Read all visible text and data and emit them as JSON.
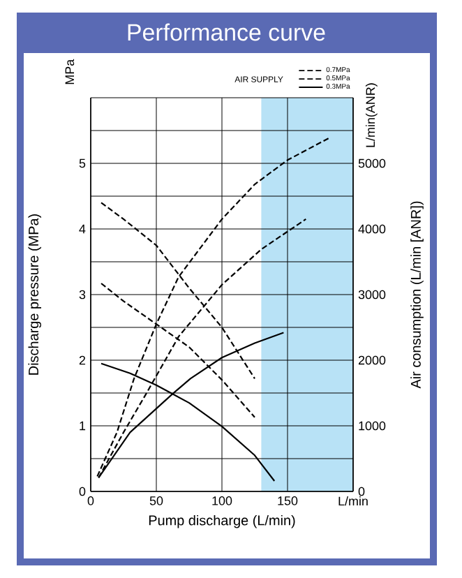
{
  "chart_data": {
    "type": "line",
    "title": "Performance curve",
    "xlabel": "Pump discharge (L/min)",
    "ylabel": "Discharge pressure (MPa)",
    "y2label": "Air consumption (L/min [ANR])",
    "legend_title": "AIR SUPPLY",
    "legend": "top right",
    "grid": true,
    "marker": "none",
    "annotations": [
      "MPa",
      "L/min(ANR)"
    ],
    "xlim": [
      0,
      200
    ],
    "xticks": [
      0,
      50,
      100,
      150,
      {
        "value": 200,
        "label": "L/min"
      }
    ],
    "ylim": [
      0,
      6
    ],
    "yticks": [
      0,
      {
        "value": 0.5,
        "label": null
      },
      1,
      {
        "value": 1.5,
        "label": null
      },
      2,
      {
        "value": 2.5,
        "label": null
      },
      3,
      {
        "value": 3.5,
        "label": null
      },
      4,
      {
        "value": 4.5,
        "label": null
      },
      5,
      {
        "value": 5.5,
        "label": null
      },
      {
        "value": 6,
        "label": null
      }
    ],
    "y2lim": [
      0,
      6000
    ],
    "y2ticks": [
      0,
      1000,
      2000,
      3000,
      4000,
      5000
    ],
    "bands": [
      {
        "axis": "x",
        "from": 130,
        "to": 200,
        "color": "#b8e2f6"
      }
    ],
    "series": [
      {
        "name": "0.7MPa",
        "color": "#000000",
        "line_style": "dashed",
        "x": [
          8,
          25,
          50,
          75,
          100,
          125
        ],
        "values": [
          4.4,
          4.15,
          3.75,
          3.1,
          2.5,
          1.72
        ]
      },
      {
        "name": "0.5MPa",
        "color": "#000000",
        "line_style": "dashed",
        "x": [
          8,
          25,
          50,
          75,
          100,
          125
        ],
        "values": [
          3.17,
          2.9,
          2.55,
          2.2,
          1.7,
          1.13
        ]
      },
      {
        "name": "0.3MPa",
        "color": "#000000",
        "line_style": "solid",
        "x": [
          8,
          30,
          50,
          75,
          100,
          125,
          140
        ],
        "values": [
          1.95,
          1.8,
          1.62,
          1.35,
          0.99,
          0.55,
          0.16
        ]
      },
      {
        "color": "#000000",
        "line_style": "dashed",
        "axis": "y2",
        "x": [
          5,
          20,
          33,
          50,
          67,
          100,
          125,
          150,
          183
        ],
        "values": [
          230,
          900,
          1720,
          2550,
          3270,
          4150,
          4680,
          5050,
          5400
        ]
      },
      {
        "color": "#000000",
        "line_style": "dashed",
        "axis": "y2",
        "x": [
          6,
          25,
          42,
          67,
          100,
          130,
          164
        ],
        "values": [
          210,
          900,
          1480,
          2360,
          3150,
          3690,
          4150
        ]
      },
      {
        "color": "#000000",
        "line_style": "solid",
        "axis": "y2",
        "x": [
          6,
          30,
          62,
          76,
          100,
          125,
          147
        ],
        "values": [
          210,
          900,
          1480,
          1720,
          2040,
          2260,
          2420
        ]
      }
    ]
  }
}
